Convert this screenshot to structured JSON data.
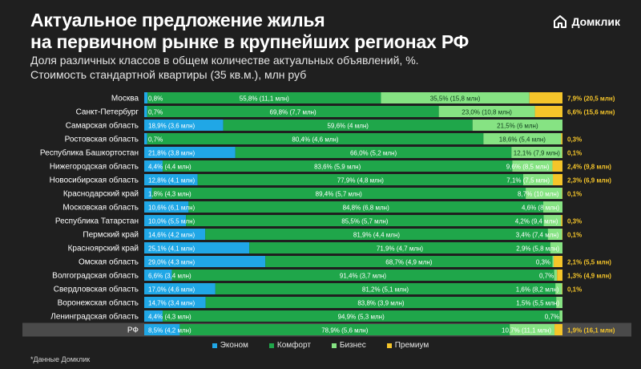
{
  "title_line1": "Актуальное предложение жилья",
  "title_line2": "на первичном рынке в крупнейших регионах РФ",
  "subtitle_line1": "Доля различных классов в общем количестве актуальных объявлений, %.",
  "subtitle_line2": "Стоимость стандартной квартиры (35 кв.м.), млн руб",
  "logo_text": "Домклик",
  "footnote": "*Данные Домклик",
  "colors": {
    "econom": "#20a7e6",
    "comfort": "#1fa64a",
    "business": "#86e383",
    "premium": "#f5c52a",
    "label_accent": "#f5c52a",
    "background": "#1f1f1f"
  },
  "chart_data": {
    "type": "bar",
    "stacked": true,
    "orientation": "horizontal",
    "x_range": [
      0,
      100
    ],
    "legend_position": "bottom",
    "series": [
      {
        "key": "econom",
        "name": "Эконом",
        "color": "#20a7e6"
      },
      {
        "key": "comfort",
        "name": "Комфорт",
        "color": "#1fa64a"
      },
      {
        "key": "business",
        "name": "Бизнес",
        "color": "#86e383"
      },
      {
        "key": "premium",
        "name": "Премиум",
        "color": "#f5c52a"
      }
    ],
    "rows": [
      {
        "region": "Москва",
        "values": [
          0.8,
          55.8,
          35.5,
          7.9
        ],
        "labels": [
          "0,8%",
          "55,8% (11,1 млн)",
          "35,5% (15,8 млн)",
          "7,9%  (20,5 млн)"
        ]
      },
      {
        "region": "Санкт-Петербург",
        "values": [
          0.7,
          69.8,
          23.0,
          6.6
        ],
        "labels": [
          "0,7%",
          "69,8% (7,7 млн)",
          "23,0% (10,8 млн)",
          "6,6% (15,6 млн)"
        ]
      },
      {
        "region": "Самарская область",
        "values": [
          18.9,
          59.6,
          21.5,
          0
        ],
        "labels": [
          "18,9% (3,6 млн)",
          "59,6% (4 млн)",
          "21,5% (6 млн)",
          ""
        ]
      },
      {
        "region": "Ростовская область",
        "values": [
          0.7,
          80.4,
          18.6,
          0.3
        ],
        "labels": [
          "0,7%",
          "80,4% (4,6 млн)",
          "18,6% (5,4 млн)",
          "0,3%"
        ]
      },
      {
        "region": "Республика Башкортостан",
        "values": [
          21.8,
          66.0,
          12.1,
          0.1
        ],
        "labels": [
          "21,8% (3,8 млн)",
          "66,0% (5,2 млн)",
          "12,1% (7,9 млн)",
          "0,1%"
        ]
      },
      {
        "region": "Нижегородская область",
        "values": [
          4.4,
          83.6,
          9.6,
          2.4
        ],
        "labels": [
          "4,4% (4,4 млн)",
          "83,6% (5,9 млн)",
          "9,6% (8,5 млн)",
          "2,4% (9,8 млн)"
        ]
      },
      {
        "region": "Новосибирская область",
        "values": [
          12.8,
          77.9,
          7.1,
          2.3
        ],
        "labels": [
          "12,8% (4,1 млн)",
          "77,9% (4,8 млн)",
          "7,1% (7,5 млн)",
          "2,3% (6,9 млн)"
        ]
      },
      {
        "region": "Краснодарский край",
        "values": [
          1.8,
          89.4,
          8.7,
          0.1
        ],
        "labels": [
          "1,8% (4,3 млн)",
          "89,4% (5,7 млн)",
          "8,7% (10 млн)",
          "0,1%"
        ]
      },
      {
        "region": "Московская область",
        "values": [
          10.6,
          84.8,
          4.6,
          0
        ],
        "labels": [
          "10,6% (6,1 млн)",
          "84,8% (6,8 млн)",
          "4,6% (8 млн)",
          ""
        ]
      },
      {
        "region": "Республика Татарстан",
        "values": [
          10.0,
          85.5,
          4.2,
          0.3
        ],
        "labels": [
          "10,0% (5,5 млн)",
          "85,5% (5,7 млн)",
          "4,2% (9,4 млн)",
          "0,3%"
        ]
      },
      {
        "region": "Пермский край",
        "values": [
          14.6,
          81.9,
          3.4,
          0.1
        ],
        "labels": [
          "14,6% (4,2 млн)",
          "81,9% (4,4 млн)",
          "3,4% (7,4 млн)",
          "0,1%"
        ]
      },
      {
        "region": "Красноярский край",
        "values": [
          25.1,
          71.9,
          2.9,
          0
        ],
        "labels": [
          "25,1% (4,1 млн)",
          "71,9% (4,7 млн)",
          "2,9% (5,8 млн)",
          ""
        ]
      },
      {
        "region": "Омская область",
        "values": [
          29.0,
          68.7,
          0.3,
          2.1
        ],
        "labels": [
          "29,0% (4,3 млн)",
          "68,7% (4,9 млн)",
          "0,3%",
          "2,1% (5,5 млн)"
        ]
      },
      {
        "region": "Волгоградская область",
        "values": [
          6.6,
          91.4,
          0.7,
          1.3
        ],
        "labels": [
          "6,6% (3,4 млн)",
          "91,4% (3,7 млн)",
          "0,7%",
          "1,3% (4,9 млн)"
        ]
      },
      {
        "region": "Свердловская область",
        "values": [
          17.0,
          81.2,
          1.6,
          0.1
        ],
        "labels": [
          "17,0% (4,6 млн)",
          "81,2% (5,1 млн)",
          "1,6% (8,2 млн)",
          "0,1%"
        ]
      },
      {
        "region": "Воронежская область",
        "values": [
          14.7,
          83.8,
          1.5,
          0
        ],
        "labels": [
          "14,7% (3,4 млн)",
          "83,8% (3,9 млн)",
          "1,5% (5,5 млн)",
          ""
        ]
      },
      {
        "region": "Ленинградская область",
        "values": [
          4.4,
          94.9,
          0.7,
          0
        ],
        "labels": [
          "4,4% (4,3 млн)",
          "94,9% (5,3 млн)",
          "0,7%",
          ""
        ]
      },
      {
        "region": "РФ",
        "values": [
          8.5,
          78.9,
          10.7,
          1.9
        ],
        "labels": [
          "8,5% (4,2 млн)",
          "78,9% (5,6 млн)",
          "10,7% (11,1 млн)",
          "1,9% (16,1 млн)"
        ],
        "highlight": true
      }
    ]
  }
}
